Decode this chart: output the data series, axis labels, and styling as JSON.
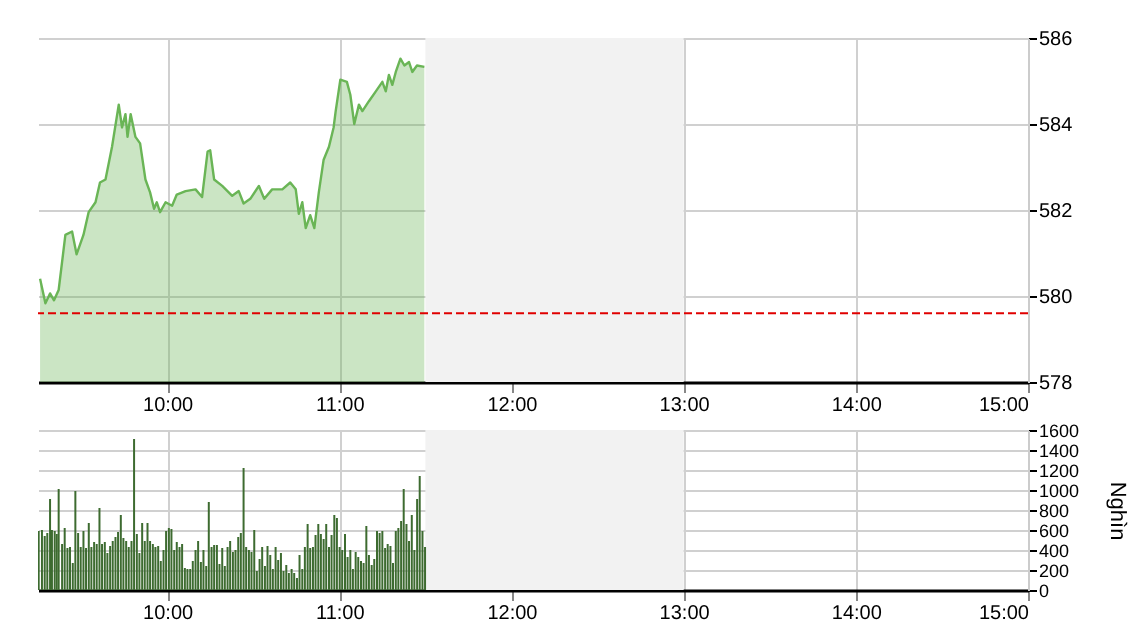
{
  "chart_data": [
    {
      "type": "area",
      "xlim": [
        9.25,
        15
      ],
      "xticks": [
        {
          "value": 10,
          "label": "10:00"
        },
        {
          "value": 11,
          "label": "11:00"
        },
        {
          "value": 12,
          "label": "12:00"
        },
        {
          "value": 13,
          "label": "13:00"
        },
        {
          "value": 14,
          "label": "14:00"
        },
        {
          "value": 15,
          "label": "15:00"
        }
      ],
      "ylim": [
        578,
        586
      ],
      "yticks": [
        578,
        580,
        582,
        584,
        586
      ],
      "grid": true,
      "legend": false,
      "x": [
        9.262,
        9.293,
        9.32,
        9.343,
        9.37,
        9.409,
        9.448,
        9.474,
        9.514,
        9.544,
        9.584,
        9.61,
        9.642,
        9.68,
        9.719,
        9.738,
        9.758,
        9.77,
        9.788,
        9.816,
        9.843,
        9.874,
        9.901,
        9.924,
        9.94,
        9.959,
        9.991,
        10.029,
        10.056,
        10.107,
        10.165,
        10.203,
        10.235,
        10.25,
        10.273,
        10.32,
        10.378,
        10.416,
        10.444,
        10.483,
        10.533,
        10.564,
        10.61,
        10.669,
        10.715,
        10.747,
        10.765,
        10.785,
        10.805,
        10.831,
        10.855,
        10.881,
        10.909,
        10.94,
        10.967,
        10.979,
        11.006,
        11.044,
        11.064,
        11.087,
        11.114,
        11.134,
        11.172,
        11.212,
        11.25,
        11.27,
        11.288,
        11.308,
        11.328,
        11.355,
        11.378,
        11.405,
        11.424,
        11.451,
        11.494
      ],
      "series": [
        {
          "color": "#6ab556",
          "values": [
            580.4,
            579.83,
            580.06,
            579.9,
            580.14,
            581.42,
            581.5,
            580.97,
            581.42,
            581.95,
            582.18,
            582.64,
            582.71,
            583.47,
            584.45,
            583.92,
            584.23,
            583.7,
            584.23,
            583.7,
            583.55,
            582.71,
            582.41,
            582.03,
            582.18,
            581.95,
            582.18,
            582.1,
            582.36,
            582.44,
            582.48,
            582.3,
            583.36,
            583.39,
            582.71,
            582.56,
            582.33,
            582.44,
            582.15,
            582.26,
            582.56,
            582.26,
            582.48,
            582.48,
            582.64,
            582.48,
            581.91,
            582.18,
            581.58,
            581.88,
            581.58,
            582.41,
            583.17,
            583.47,
            583.92,
            584.3,
            585.03,
            584.98,
            584.68,
            584.0,
            584.45,
            584.3,
            584.53,
            584.76,
            584.98,
            584.76,
            585.14,
            584.91,
            585.21,
            585.52,
            585.36,
            585.44,
            585.21,
            585.36,
            585.33
          ]
        }
      ],
      "ref_lines": [
        {
          "axis": "y",
          "value": 579.6,
          "color": "#e00000",
          "line_style": "dashed"
        }
      ],
      "bands": [
        {
          "axis": "x",
          "from": 11.5,
          "to": 13,
          "color": "#f2f2f2"
        }
      ]
    },
    {
      "type": "bar",
      "ylabel": "Nghìn",
      "xlim": [
        9.25,
        15
      ],
      "xticks": [
        {
          "value": 10,
          "label": "10:00"
        },
        {
          "value": 11,
          "label": "11:00"
        },
        {
          "value": 12,
          "label": "12:00"
        },
        {
          "value": 13,
          "label": "13:00"
        },
        {
          "value": 14,
          "label": "14:00"
        },
        {
          "value": 15,
          "label": "15:00"
        }
      ],
      "ylim": [
        0,
        1600
      ],
      "yticks": [
        0,
        200,
        400,
        600,
        800,
        1000,
        1200,
        1400,
        1600
      ],
      "grid": true,
      "legend": false,
      "x": [
        9.254,
        9.273,
        9.289,
        9.304,
        9.32,
        9.331,
        9.347,
        9.359,
        9.37,
        9.39,
        9.405,
        9.421,
        9.436,
        9.452,
        9.467,
        9.483,
        9.498,
        9.514,
        9.529,
        9.545,
        9.56,
        9.576,
        9.591,
        9.607,
        9.622,
        9.638,
        9.653,
        9.669,
        9.684,
        9.7,
        9.715,
        9.731,
        9.746,
        9.762,
        9.777,
        9.793,
        9.808,
        9.824,
        9.839,
        9.855,
        9.87,
        9.886,
        9.901,
        9.917,
        9.932,
        9.948,
        9.963,
        9.979,
        9.994,
        10.01,
        10.025,
        10.041,
        10.056,
        10.072,
        10.087,
        10.103,
        10.118,
        10.134,
        10.149,
        10.165,
        10.18,
        10.196,
        10.211,
        10.227,
        10.242,
        10.258,
        10.273,
        10.289,
        10.304,
        10.32,
        10.335,
        10.351,
        10.366,
        10.382,
        10.397,
        10.413,
        10.428,
        10.444,
        10.459,
        10.475,
        10.49,
        10.506,
        10.521,
        10.537,
        10.552,
        10.568,
        10.583,
        10.599,
        10.614,
        10.63,
        10.645,
        10.661,
        10.676,
        10.692,
        10.707,
        10.723,
        10.738,
        10.754,
        10.769,
        10.785,
        10.8,
        10.816,
        10.831,
        10.847,
        10.862,
        10.878,
        10.893,
        10.909,
        10.924,
        10.94,
        10.955,
        10.971,
        10.986,
        11.002,
        11.017,
        11.033,
        11.048,
        11.064,
        11.079,
        11.095,
        11.11,
        11.126,
        11.141,
        11.157,
        11.172,
        11.188,
        11.203,
        11.219,
        11.234,
        11.25,
        11.266,
        11.281,
        11.297,
        11.312,
        11.328,
        11.343,
        11.359,
        11.374,
        11.39,
        11.405,
        11.421,
        11.436,
        11.452,
        11.467,
        11.483,
        11.498
      ],
      "series": [
        {
          "color": "#3d6b30",
          "values": [
            590,
            600,
            540,
            570,
            910,
            600,
            590,
            560,
            1010,
            460,
            620,
            420,
            430,
            270,
            990,
            570,
            430,
            590,
            420,
            670,
            430,
            480,
            460,
            820,
            460,
            480,
            370,
            440,
            490,
            530,
            580,
            750,
            520,
            490,
            430,
            490,
            1510,
            560,
            370,
            670,
            490,
            670,
            490,
            460,
            430,
            440,
            290,
            400,
            590,
            620,
            610,
            400,
            480,
            430,
            460,
            220,
            210,
            210,
            290,
            400,
            490,
            280,
            400,
            240,
            880,
            430,
            450,
            450,
            260,
            420,
            240,
            430,
            490,
            380,
            400,
            530,
            570,
            1220,
            430,
            400,
            380,
            600,
            190,
            310,
            430,
            240,
            440,
            350,
            210,
            430,
            300,
            370,
            190,
            250,
            170,
            210,
            170,
            120,
            350,
            210,
            430,
            660,
            420,
            430,
            550,
            660,
            560,
            510,
            660,
            430,
            550,
            750,
            720,
            430,
            400,
            560,
            330,
            400,
            210,
            380,
            330,
            290,
            270,
            640,
            350,
            250,
            310,
            590,
            570,
            590,
            420,
            460,
            440,
            270,
            590,
            620,
            690,
            1010,
            660,
            490,
            750,
            400,
            910,
            1140,
            590,
            430
          ]
        }
      ],
      "bands": [
        {
          "axis": "x",
          "from": 11.5,
          "to": 13,
          "color": "#f2f2f2"
        }
      ]
    }
  ]
}
